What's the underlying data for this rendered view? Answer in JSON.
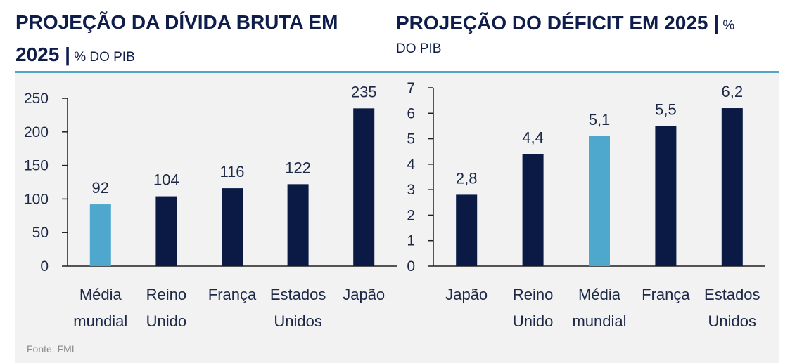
{
  "source": "Fonte: FMI",
  "colors": {
    "title": "#0f1d4a",
    "text": "#1c2846",
    "axis": "#1f1f1f",
    "accent_rule": "#52a6c6",
    "panel": "#f2f2f2",
    "source": "#8c8c8c"
  },
  "chart_data": [
    {
      "type": "bar",
      "title": "PROJEÇÃO DA DÍVIDA BRUTA EM 2025 |",
      "unit": "% DO PIB",
      "categories": [
        "Média mundial",
        "Reino Unido",
        "França",
        "Estados Unidos",
        "Japão"
      ],
      "values": [
        92,
        104,
        116,
        122,
        235
      ],
      "ylim": [
        0,
        250
      ],
      "yticks": [
        0,
        50,
        100,
        150,
        200,
        250
      ],
      "grid": false,
      "bar_colors": [
        "#4ea8cd",
        "#0b1a45",
        "#0b1a45",
        "#0b1a45",
        "#0b1a45"
      ]
    },
    {
      "type": "bar",
      "title": "PROJEÇÃO DO DÉFICIT EM 2025 |",
      "unit": "% DO PIB",
      "categories": [
        "Japão",
        "Reino Unido",
        "Média mundial",
        "França",
        "Estados Unidos"
      ],
      "values": [
        2.8,
        4.4,
        5.1,
        5.5,
        6.2
      ],
      "ylim": [
        0,
        7
      ],
      "yticks": [
        0,
        1,
        2,
        3,
        4,
        5,
        6,
        7
      ],
      "grid": false,
      "bar_colors": [
        "#0b1a45",
        "#0b1a45",
        "#4ea8cd",
        "#0b1a45",
        "#0b1a45"
      ]
    }
  ]
}
